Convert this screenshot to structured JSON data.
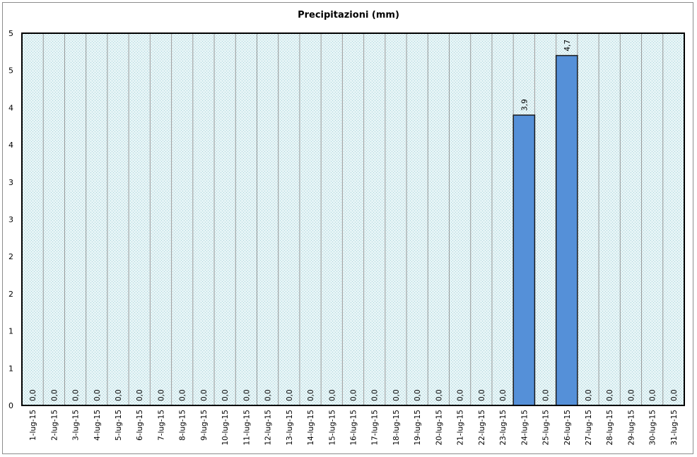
{
  "chart_data": {
    "type": "bar",
    "title": "Precipitazioni (mm)",
    "xlabel": "",
    "ylabel": "",
    "ylim": [
      0,
      5
    ],
    "y_tick_labels": [
      "0",
      "1",
      "1",
      "2",
      "2",
      "3",
      "3",
      "4",
      "4",
      "5",
      "5"
    ],
    "categories": [
      "1-lug-15",
      "2-lug-15",
      "3-lug-15",
      "4-lug-15",
      "5-lug-15",
      "6-lug-15",
      "7-lug-15",
      "8-lug-15",
      "9-lug-15",
      "10-lug-15",
      "11-lug-15",
      "12-lug-15",
      "13-lug-15",
      "14-lug-15",
      "15-lug-15",
      "16-lug-15",
      "17-lug-15",
      "18-lug-15",
      "19-lug-15",
      "20-lug-15",
      "21-lug-15",
      "22-lug-15",
      "23-lug-15",
      "24-lug-15",
      "25-lug-15",
      "26-lug-15",
      "27-lug-15",
      "28-lug-15",
      "29-lug-15",
      "30-lug-15",
      "31-lug-15"
    ],
    "values": [
      0,
      0,
      0,
      0,
      0,
      0,
      0,
      0,
      0,
      0,
      0,
      0,
      0,
      0,
      0,
      0,
      0,
      0,
      0,
      0,
      0,
      0,
      0,
      3.9,
      0,
      4.7,
      0,
      0,
      0,
      0,
      0
    ],
    "data_labels": [
      "0,0",
      "0,0",
      "0,0",
      "0,0",
      "0,0",
      "0,0",
      "0,0",
      "0,0",
      "0,0",
      "0,0",
      "0,0",
      "0,0",
      "0,0",
      "0,0",
      "0,0",
      "0,0",
      "0,0",
      "0,0",
      "0,0",
      "0,0",
      "0,0",
      "0,0",
      "0,0",
      "3,9",
      "0,0",
      "4,7",
      "0,0",
      "0,0",
      "0,0",
      "0,0",
      "0,0"
    ],
    "grid": true,
    "legend": "none",
    "colors": {
      "bar_fill": "#5590d8",
      "bar_stroke": "#1a1a1a",
      "plot_bg": "#dff0f2",
      "grid": "#9a9a9a"
    }
  }
}
